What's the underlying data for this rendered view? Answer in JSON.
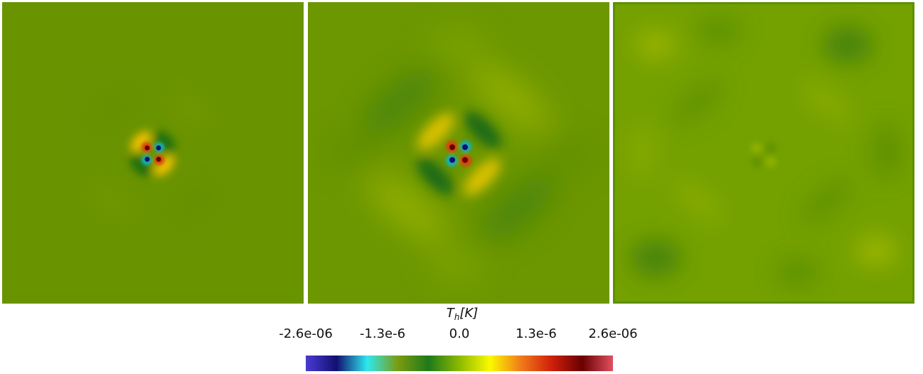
{
  "figure": {
    "panels": [
      {
        "id": "left"
      },
      {
        "id": "middle"
      },
      {
        "id": "right"
      }
    ]
  },
  "colorbar": {
    "title_main": "T",
    "title_sub": "h",
    "title_unit": "[K]",
    "tick_labels": [
      "-2.6e-06",
      "-1.3e-6",
      "0.0",
      "1.3e-6",
      "2.6e-06"
    ],
    "range": [
      -2.6e-06,
      2.6e-06
    ],
    "colormap_stops": [
      "#4a3bd3",
      "#101070",
      "#2fe8ee",
      "#7a9b10",
      "#1e7a1a",
      "#8cba00",
      "#fafa00",
      "#f07b1a",
      "#d0200a",
      "#6a0000",
      "#e05060"
    ]
  },
  "colors": {
    "background_field": "#6b9300",
    "text": "#111111"
  }
}
